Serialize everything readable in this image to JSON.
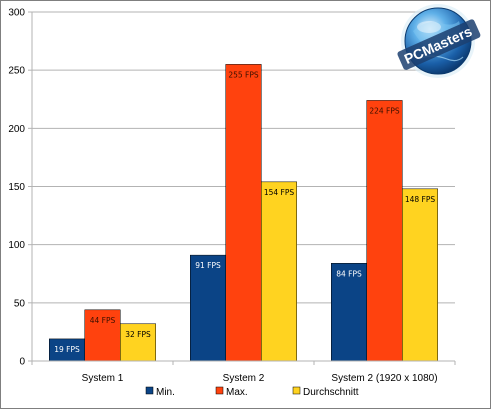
{
  "chart_data": {
    "type": "bar",
    "categories": [
      "System 1",
      "System 2",
      "System 2 (1920 x 1080)"
    ],
    "series": [
      {
        "name": "Min.",
        "values": [
          19,
          91,
          84
        ],
        "labels": [
          "19 FPS",
          "91 FPS",
          "84 FPS"
        ],
        "color": "#0b4486",
        "label_color": "#ffffff"
      },
      {
        "name": "Max.",
        "values": [
          44,
          255,
          224
        ],
        "labels": [
          "44 FPS",
          "255 FPS",
          "224 FPS"
        ],
        "color": "#ff420e",
        "label_color": "#3a1000"
      },
      {
        "name": "Durchschnitt",
        "values": [
          32,
          154,
          148
        ],
        "labels": [
          "32 FPS",
          "154 FPS",
          "148 FPS"
        ],
        "color": "#ffd320",
        "label_color": "#000000"
      }
    ],
    "ylim": [
      0,
      300
    ],
    "yticks": [
      0,
      50,
      100,
      150,
      200,
      250,
      300
    ],
    "title": "",
    "xlabel": "",
    "ylabel": "",
    "grid": true,
    "legend_position": "bottom"
  },
  "logo": {
    "text": "PCMasters",
    "icon": "globe-icon"
  },
  "colors": {
    "grid": "#b3b3b3",
    "axis": "#b3b3b3",
    "border": "#7f7f7f"
  }
}
